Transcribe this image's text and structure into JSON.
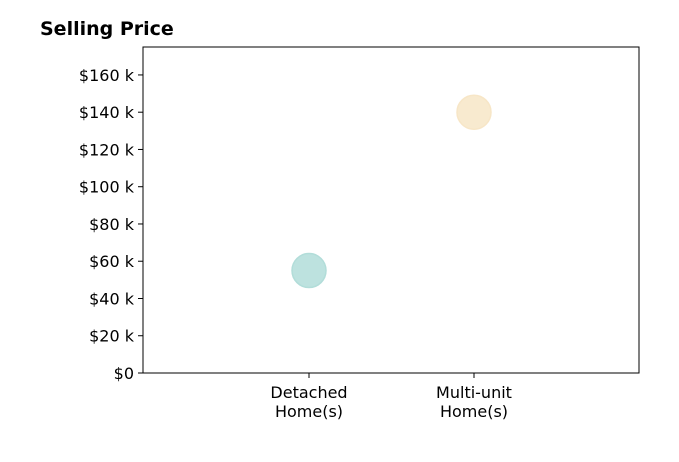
{
  "chart_data": {
    "type": "scatter",
    "title": "Selling Price",
    "xlabel": "",
    "ylabel": "",
    "categories": [
      "Detached Home(s)",
      "Multi-unit Home(s)"
    ],
    "category_lines": [
      [
        "Detached",
        "Home(s)"
      ],
      [
        "Multi-unit",
        "Home(s)"
      ]
    ],
    "points": [
      {
        "category": "Detached Home(s)",
        "y": 55000,
        "color": "#b2ddd9"
      },
      {
        "category": "Multi-unit Home(s)",
        "y": 140000,
        "color": "#f7e6c7"
      }
    ],
    "ylim": [
      0,
      175000
    ],
    "yticks": [
      0,
      20000,
      40000,
      60000,
      80000,
      100000,
      120000,
      140000,
      160000
    ],
    "ytick_labels": [
      "$0",
      "$20 k",
      "$40 k",
      "$60 k",
      "$80 k",
      "$100 k",
      "$120 k",
      "$140 k",
      "$160 k"
    ],
    "grid": false,
    "legend": "none"
  }
}
